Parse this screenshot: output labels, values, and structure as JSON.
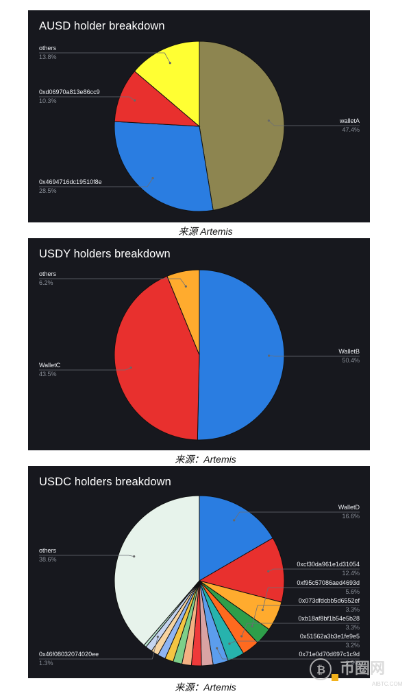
{
  "chart_data": [
    {
      "type": "pie",
      "title": "AUSD holder breakdown",
      "slices": [
        {
          "label": "walletA",
          "value": 47.4,
          "display": "47.4%",
          "color": "#8d8550"
        },
        {
          "label": "0x4694716dc19510f8e",
          "value": 28.5,
          "display": "28.5%",
          "color": "#2a7de1"
        },
        {
          "label": "0xd06970a813e86cc9",
          "value": 10.3,
          "display": "10.3%",
          "color": "#e8302e"
        },
        {
          "label": "others",
          "value": 13.8,
          "display": "13.8%",
          "color": "#ffff33"
        }
      ],
      "caption": "来源 Artemis"
    },
    {
      "type": "pie",
      "title": "USDY holders breakdown",
      "slices": [
        {
          "label": "WalletB",
          "value": 50.4,
          "display": "50.4%",
          "color": "#2a7de1"
        },
        {
          "label": "WalletC",
          "value": 43.5,
          "display": "43.5%",
          "color": "#e8302e"
        },
        {
          "label": "others",
          "value": 6.2,
          "display": "6.2%",
          "color": "#ffab2e"
        }
      ],
      "caption": "来源：Artemis"
    },
    {
      "type": "pie",
      "title": "USDC holders breakdown",
      "slices": [
        {
          "label": "WalletD",
          "value": 16.6,
          "display": "16.6%",
          "color": "#2a7de1"
        },
        {
          "label": "0xcf30da961e1d31054",
          "value": 12.4,
          "display": "12.4%",
          "color": "#e8302e"
        },
        {
          "label": "0xf95c57086aed4693d",
          "value": 5.6,
          "display": "5.6%",
          "color": "#ffab2e"
        },
        {
          "label": "0x073dfdcbb5d6552ef",
          "value": 3.3,
          "display": "3.3%",
          "color": "#2e9e4a"
        },
        {
          "label": "0xb18af8bf1b54e5b28",
          "value": 3.3,
          "display": "3.3%",
          "color": "#ff6a1f"
        },
        {
          "label": "0x51562a3b3e1fe9e5",
          "value": 3.2,
          "display": "3.2%",
          "color": "#27b3ad"
        },
        {
          "label": "0x71e0d70d697c1c9d",
          "value": 2.9,
          "display": "2.9%",
          "color": "#5c9ded"
        },
        {
          "label": "",
          "value": 2.2,
          "color": "#d9a3a3"
        },
        {
          "label": "",
          "value": 1.9,
          "color": "#ee3a3a"
        },
        {
          "label": "",
          "value": 1.8,
          "color": "#f4b183"
        },
        {
          "label": "",
          "value": 1.7,
          "color": "#7ecf8a"
        },
        {
          "label": "",
          "value": 1.6,
          "color": "#f4c542"
        },
        {
          "label": "",
          "value": 1.5,
          "color": "#8fb5f2"
        },
        {
          "label": "",
          "value": 1.4,
          "color": "#f7d4a0"
        },
        {
          "label": "0x46f08032074020ee",
          "value": 1.3,
          "display": "1.3%",
          "color": "#c5d5f0"
        },
        {
          "label": "",
          "value": 0.5,
          "color": "#b9e3cf"
        },
        {
          "label": "others",
          "value": 38.6,
          "display": "38.6%",
          "color": "#e7f3eb"
        }
      ],
      "caption": "来源：Artemis"
    }
  ],
  "watermark": {
    "text": "AIBTC.COM"
  }
}
